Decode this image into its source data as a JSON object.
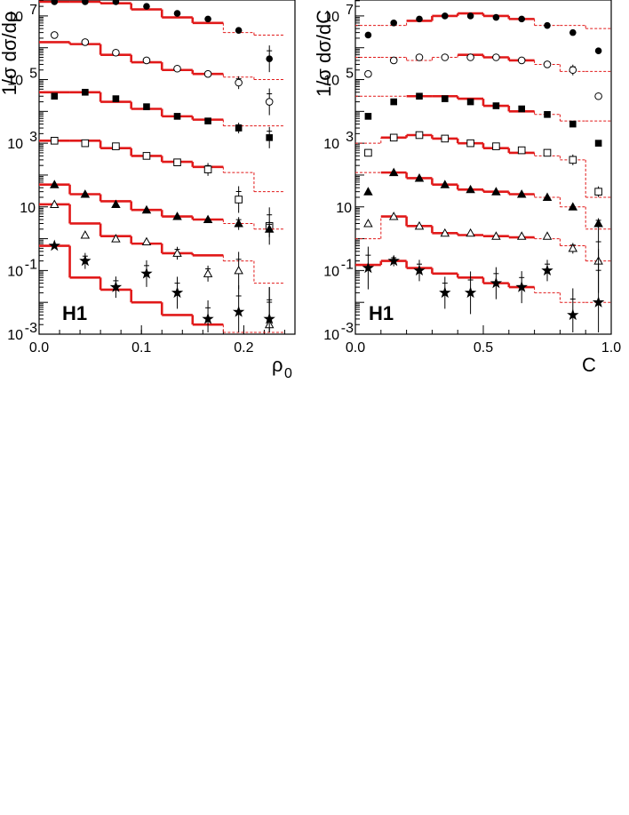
{
  "chart_data": [
    {
      "type": "scatter",
      "title": "",
      "watermark": "H1",
      "xlabel": "ρ",
      "xlabel_sub": "0",
      "ylabel": "1/σ dσ/dρ",
      "xlim": [
        0.0,
        0.25
      ],
      "ylim_log10": [
        -3,
        7.5
      ],
      "yscale": "log",
      "x_ticks": [
        0.0,
        0.1,
        0.2
      ],
      "x_tick_labels": [
        "0.0",
        "0.1",
        "0.2"
      ],
      "y_tick_labels": [
        {
          "value": 0.001,
          "base": "10",
          "exp": "-3"
        },
        {
          "value": 0.1,
          "base": "10",
          "exp": "-1"
        },
        {
          "value": 10,
          "base": "10",
          "exp": ""
        },
        {
          "value": 1000,
          "base": "10",
          "exp": "3"
        },
        {
          "value": 100000,
          "base": "10",
          "exp": "5"
        },
        {
          "value": 10000000,
          "base": "10",
          "exp": "7"
        }
      ],
      "bin_edges": [
        0.0,
        0.03,
        0.06,
        0.09,
        0.12,
        0.15,
        0.18,
        0.21,
        0.24
      ],
      "x_points": [
        0.015,
        0.045,
        0.075,
        0.105,
        0.135,
        0.165,
        0.195,
        0.225
      ],
      "solid_bins": 6,
      "series": [
        {
          "marker": "circle-filled",
          "points": [
            40000000.0,
            40000000.0,
            30000000.0,
            20000000.0,
            12000000.0,
            8000000.0,
            3500000.0,
            450000.0
          ],
          "errors": [
            0,
            0,
            0,
            0,
            0,
            0,
            0,
            0.25
          ],
          "histogram": [
            40000000.0,
            35000000.0,
            25000000.0,
            16000000.0,
            9000000.0,
            6000000.0,
            3000000.0,
            2500000.0
          ]
        },
        {
          "marker": "circle-open",
          "points": [
            2500000.0,
            1500000.0,
            700000.0,
            400000.0,
            220000.0,
            150000.0,
            80000.0,
            20000.0
          ],
          "errors": [
            0,
            0,
            0,
            0,
            0,
            0,
            0.12,
            0.25
          ],
          "histogram": [
            1500000.0,
            1300000.0,
            600000.0,
            350000.0,
            200000.0,
            150000.0,
            120000.0,
            100000.0
          ]
        },
        {
          "marker": "square-filled",
          "points": [
            30000.0,
            40000.0,
            25000.0,
            14000.0,
            7000.0,
            5000.0,
            3000.0,
            1500.0
          ],
          "errors": [
            0,
            0,
            0,
            0,
            0,
            0,
            0.1,
            0.2
          ],
          "histogram": [
            40000.0,
            40000.0,
            20000.0,
            12000.0,
            7000.0,
            5500.0,
            3500.0,
            3500.0
          ]
        },
        {
          "marker": "square-open",
          "points": [
            1200.0,
            1000.0,
            800.0,
            400.0,
            250.0,
            150.0,
            17.0,
            2.5
          ],
          "errors": [
            0,
            0,
            0,
            0,
            0,
            0.12,
            0.25,
            0.35
          ],
          "histogram": [
            1200.0,
            1200.0,
            700.0,
            400.0,
            260.0,
            180.0,
            120.0,
            30.0
          ]
        },
        {
          "marker": "triangle-filled",
          "points": [
            50.0,
            25.0,
            12.0,
            8,
            5,
            4,
            3,
            2
          ],
          "errors": [
            0,
            0,
            0,
            0,
            0,
            0,
            0.12,
            0.15
          ],
          "histogram": [
            50.0,
            25.0,
            15.0,
            8,
            5,
            4,
            3,
            2
          ]
        },
        {
          "marker": "triangle-open",
          "points": [
            12.0,
            1.3,
            1,
            0.8,
            0.35,
            0.08,
            0.1,
            0.002
          ],
          "errors": [
            0,
            0,
            0,
            0,
            0.12,
            0.15,
            0.35,
            0.7
          ],
          "histogram": [
            12.0,
            3,
            1.2,
            0.7,
            0.35,
            0.3,
            0.2,
            0.04
          ]
        },
        {
          "marker": "star",
          "points": [
            0.6,
            0.2,
            0.03,
            0.08,
            0.02,
            0.003,
            0.005,
            0.003
          ],
          "errors": [
            0,
            0.15,
            0.2,
            0.25,
            0.3,
            0.35,
            0.5,
            0.6
          ],
          "histogram": [
            0.6,
            0.06,
            0.025,
            0.01,
            0.004,
            0.002,
            0.001,
            0.001
          ]
        }
      ]
    },
    {
      "type": "scatter",
      "title": "",
      "watermark": "H1",
      "xlabel": "C",
      "xlabel_sub": "",
      "ylabel": "1/σ dσ/dC",
      "xlim": [
        0.0,
        1.0
      ],
      "ylim_log10": [
        -3,
        7.5
      ],
      "yscale": "log",
      "x_ticks": [
        0.0,
        0.5,
        1.0
      ],
      "x_tick_labels": [
        "0.0",
        "0.5",
        "1.0"
      ],
      "y_tick_labels": [
        {
          "value": 0.001,
          "base": "10",
          "exp": "-3"
        },
        {
          "value": 0.1,
          "base": "10",
          "exp": "-1"
        },
        {
          "value": 10,
          "base": "10",
          "exp": ""
        },
        {
          "value": 1000,
          "base": "10",
          "exp": "3"
        },
        {
          "value": 100000,
          "base": "10",
          "exp": "5"
        },
        {
          "value": 10000000,
          "base": "10",
          "exp": "7"
        }
      ],
      "bin_edges": [
        0.0,
        0.1,
        0.2,
        0.3,
        0.4,
        0.5,
        0.6,
        0.7,
        0.8,
        0.9,
        1.0
      ],
      "x_points": [
        0.05,
        0.15,
        0.25,
        0.35,
        0.45,
        0.55,
        0.65,
        0.75,
        0.85,
        0.95
      ],
      "solid_range": [
        2,
        7
      ],
      "series": [
        {
          "marker": "circle-filled",
          "points": [
            2500000.0,
            6000000.0,
            8000000.0,
            10000000.0,
            10000000.0,
            9000000.0,
            8000000.0,
            5000000.0,
            3000000.0,
            800000.0
          ],
          "errors": [
            0,
            0,
            0,
            0,
            0,
            0,
            0,
            0,
            0,
            0
          ],
          "histogram": [
            5000000.0,
            5000000.0,
            7000000.0,
            10000000.0,
            12000000.0,
            10000000.0,
            8000000.0,
            5000000.0,
            5000000.0,
            4000000.0
          ],
          "solid_range": [
            2,
            7
          ]
        },
        {
          "marker": "circle-open",
          "points": [
            150000.0,
            400000.0,
            500000.0,
            500000.0,
            500000.0,
            500000.0,
            400000.0,
            300000.0,
            200000.0,
            30000.0
          ],
          "errors": [
            0,
            0,
            0,
            0,
            0,
            0,
            0,
            0,
            0.1,
            0
          ],
          "histogram": [
            500000.0,
            500000.0,
            400000.0,
            500000.0,
            600000.0,
            500000.0,
            400000.0,
            300000.0,
            180000.0,
            180000.0
          ],
          "solid_range": [
            4,
            7
          ]
        },
        {
          "marker": "square-filled",
          "points": [
            7000.0,
            20000.0,
            30000.0,
            25000.0,
            20000.0,
            15000.0,
            12000.0,
            8000.0,
            4000.0,
            1000.0
          ],
          "errors": [
            0,
            0,
            0,
            0,
            0,
            0,
            0,
            0,
            0,
            0
          ],
          "histogram": [
            30000.0,
            30000.0,
            30000.0,
            30000.0,
            25000.0,
            15000.0,
            10000.0,
            8000.0,
            5000.0,
            5000.0
          ],
          "solid_range": [
            2,
            7
          ]
        },
        {
          "marker": "square-open",
          "points": [
            500.0,
            1500.0,
            1800.0,
            1400.0,
            1000.0,
            800.0,
            600.0,
            500.0,
            300.0,
            30.0
          ],
          "errors": [
            0,
            0,
            0,
            0,
            0,
            0,
            0,
            0,
            0.1,
            0.1
          ],
          "histogram": [
            1000.0,
            1500.0,
            1800.0,
            1400.0,
            1000.0,
            700.0,
            500.0,
            400.0,
            300.0,
            20.0
          ],
          "solid_range": [
            1,
            7
          ]
        },
        {
          "marker": "triangle-filled",
          "points": [
            30.0,
            120.0,
            80.0,
            50.0,
            35.0,
            30.0,
            25.0,
            20.0,
            10.0,
            3
          ],
          "errors": [
            0,
            0,
            0,
            0,
            0,
            0,
            0,
            0,
            0,
            0.1
          ],
          "histogram": [
            120.0,
            120.0,
            80.0,
            50.0,
            35.0,
            30.0,
            25.0,
            20.0,
            10.0,
            2
          ],
          "solid_range": [
            1,
            7
          ]
        },
        {
          "marker": "triangle-open",
          "points": [
            3,
            5,
            2.5,
            1.5,
            1.5,
            1.2,
            1.2,
            1.2,
            0.5,
            0.2
          ],
          "errors": [
            0,
            0,
            0,
            0,
            0,
            0,
            0,
            0,
            0.1,
            0.6
          ],
          "histogram": [
            1,
            5,
            2.5,
            1.5,
            1.3,
            1.2,
            1.1,
            1,
            0.6,
            0.2
          ],
          "solid_range": [
            1,
            7
          ]
        },
        {
          "marker": "star",
          "points": [
            0.12,
            0.2,
            0.1,
            0.02,
            0.02,
            0.04,
            0.03,
            0.1,
            0.004,
            0.01
          ],
          "errors": [
            0.4,
            0.1,
            0.2,
            0.3,
            0.4,
            0.3,
            0.3,
            0.2,
            0.5,
            1
          ],
          "histogram": [
            0.15,
            0.2,
            0.12,
            0.08,
            0.06,
            0.04,
            0.03,
            0.02,
            0.01,
            0.01
          ],
          "solid_range": [
            0,
            7
          ]
        }
      ]
    }
  ]
}
